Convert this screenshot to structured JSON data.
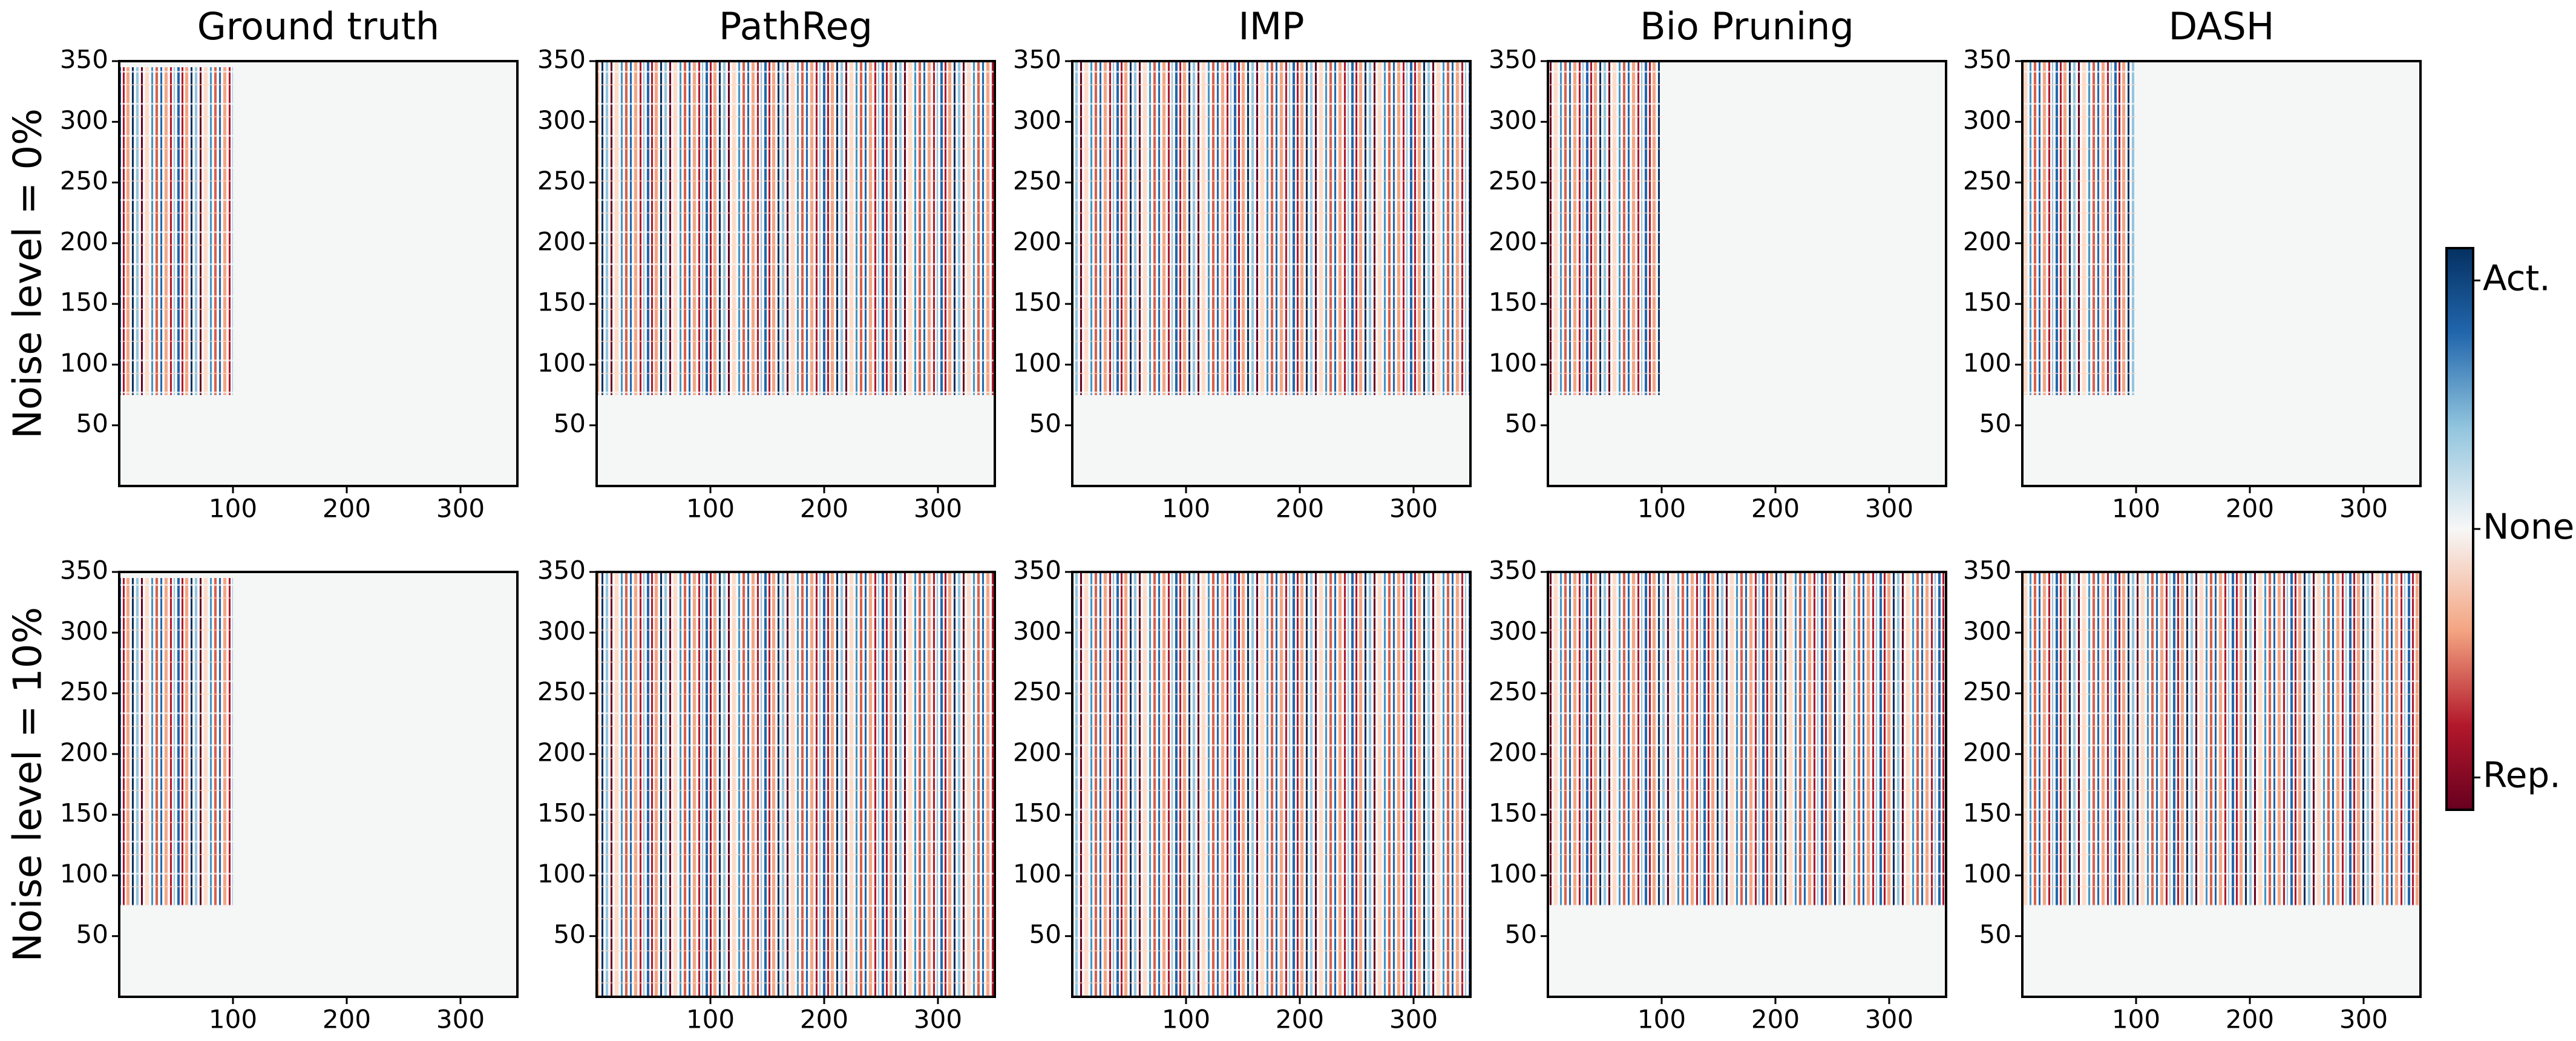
{
  "chart_data": {
    "type": "heatmap-grid",
    "columns": [
      "Ground truth",
      "PathReg",
      "IMP",
      "Bio Pruning",
      "DASH"
    ],
    "rows": [
      "Noise level = 0%",
      "Noise level = 10%"
    ],
    "xlim": [
      0,
      350
    ],
    "ylim": [
      0,
      350
    ],
    "xticks": [
      100,
      200,
      300
    ],
    "yticks": [
      50,
      100,
      150,
      200,
      250,
      300,
      350
    ],
    "panels": [
      [
        {
          "active_x": [
            0,
            100
          ],
          "active_y": [
            75,
            345
          ]
        },
        {
          "active_x": [
            0,
            350
          ],
          "active_y": [
            75,
            350
          ]
        },
        {
          "active_x": [
            0,
            350
          ],
          "active_y": [
            75,
            350
          ]
        },
        {
          "active_x": [
            0,
            100
          ],
          "active_y": [
            75,
            350
          ]
        },
        {
          "active_x": [
            0,
            100
          ],
          "active_y": [
            75,
            350
          ]
        }
      ],
      [
        {
          "active_x": [
            0,
            100
          ],
          "active_y": [
            75,
            345
          ]
        },
        {
          "active_x": [
            0,
            350
          ],
          "active_y": [
            0,
            350
          ]
        },
        {
          "active_x": [
            0,
            350
          ],
          "active_y": [
            0,
            350
          ]
        },
        {
          "active_x": [
            0,
            350
          ],
          "active_y": [
            75,
            350
          ]
        },
        {
          "active_x": [
            0,
            350
          ],
          "active_y": [
            75,
            350
          ]
        }
      ]
    ],
    "colorbar": {
      "lim": [
        -1.13,
        1.13
      ],
      "ticks": [
        {
          "value": 1,
          "label": "Act."
        },
        {
          "value": 0,
          "label": "None"
        },
        {
          "value": -1,
          "label": "Rep."
        }
      ]
    }
  }
}
